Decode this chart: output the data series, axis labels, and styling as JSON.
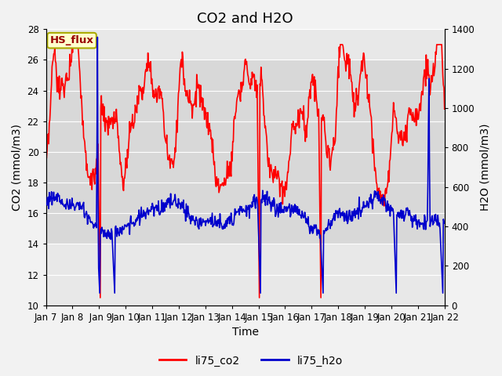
{
  "title": "CO2 and H2O",
  "xlabel": "Time",
  "ylabel_left": "CO2 (mmol/m3)",
  "ylabel_right": "H2O (mmol/m3)",
  "ylim_left": [
    10,
    28
  ],
  "ylim_right": [
    0,
    1400
  ],
  "yticks_left": [
    10,
    12,
    14,
    16,
    18,
    20,
    22,
    24,
    26,
    28
  ],
  "yticks_right": [
    0,
    200,
    400,
    600,
    800,
    1000,
    1200,
    1400
  ],
  "xtick_positions": [
    7,
    8,
    9,
    10,
    11,
    12,
    13,
    14,
    15,
    16,
    17,
    18,
    19,
    20,
    21,
    22
  ],
  "xtick_labels": [
    "Jan 7",
    "Jan 8",
    " Jan 9",
    "Jan 10",
    "Jan 11",
    "Jan 12",
    "Jan 13",
    "Jan 14",
    "Jan 15",
    "Jan 16",
    "Jan 17",
    "Jan 18",
    "Jan 19",
    "Jan 20",
    "Jan 21",
    "Jan 22"
  ],
  "color_co2": "#FF0000",
  "color_h2o": "#0000CC",
  "background_color": "#F2F2F2",
  "plot_bg_color": "#E8E8E8",
  "band_ymin": 14,
  "band_ymax": 26,
  "band_color": "#D8D8D8",
  "legend_items": [
    "li75_co2",
    "li75_h2o"
  ],
  "box_label": "HS_flux",
  "box_facecolor": "#FFFFCC",
  "box_edgecolor": "#AAAA00",
  "box_textcolor": "#990000",
  "title_fontsize": 13,
  "axis_label_fontsize": 10,
  "tick_fontsize": 8.5,
  "linewidth_co2": 1.2,
  "linewidth_h2o": 1.2
}
